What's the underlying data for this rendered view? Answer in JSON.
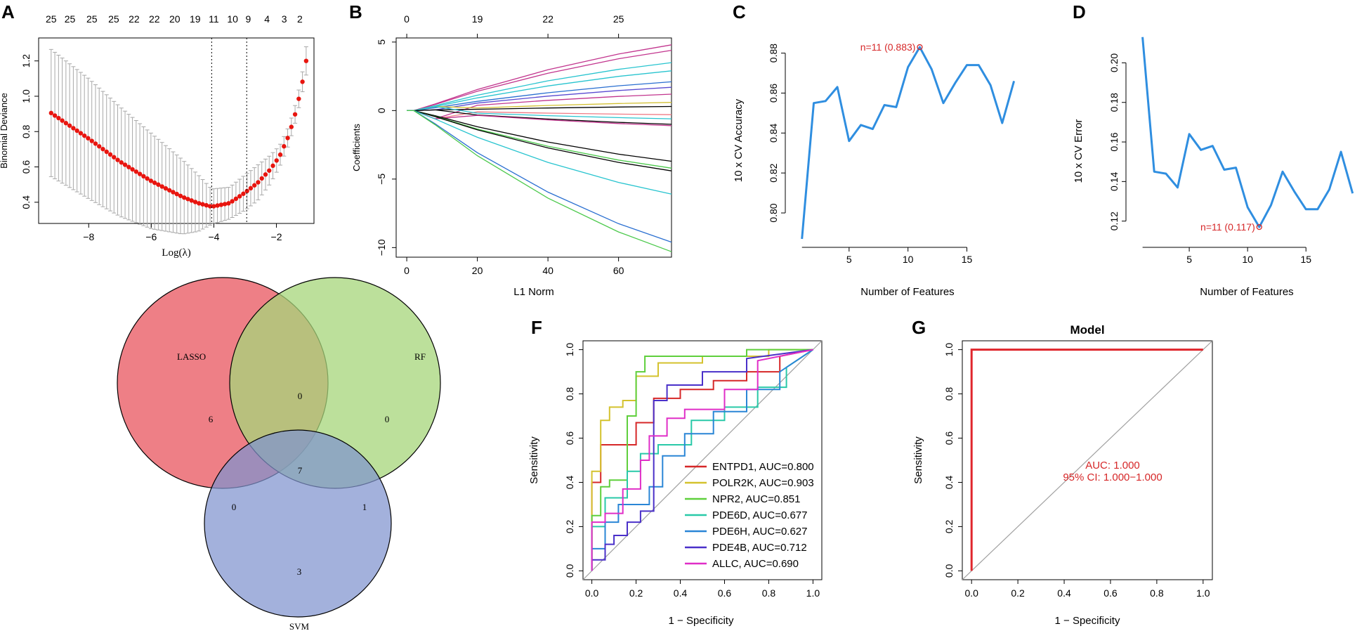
{
  "chart_data": [
    {
      "id": "A",
      "panel_label": "A",
      "type": "line",
      "title": "",
      "xlabel": "Log(λ)",
      "ylabel": "Binomial Deviance",
      "xlim": [
        -9.6,
        -0.8
      ],
      "ylim": [
        0.28,
        1.33
      ],
      "xticks": [
        -8,
        -6,
        -4,
        -2
      ],
      "yticks": [
        0.4,
        0.6,
        0.8,
        1.0,
        1.2
      ],
      "top_axis_labels": [
        "25",
        "25",
        "25",
        "25",
        "22",
        "22",
        "20",
        "19",
        "11",
        "10",
        "9",
        "4",
        "3",
        "2"
      ],
      "top_axis_positions": [
        -9.2,
        -8.6,
        -7.9,
        -7.2,
        -6.55,
        -5.9,
        -5.25,
        -4.6,
        -4.0,
        -3.4,
        -2.9,
        -2.3,
        -1.75,
        -1.25
      ],
      "vlines": [
        -4.07,
        -2.95
      ],
      "x": [
        -9.2,
        -8.0,
        -7.0,
        -6.0,
        -5.0,
        -4.5,
        -4.07,
        -3.5,
        -3.0,
        -2.6,
        -2.2,
        -1.9,
        -1.6,
        -1.4,
        -1.2,
        -1.05
      ],
      "y": [
        0.905,
        0.76,
        0.63,
        0.52,
        0.43,
        0.395,
        0.375,
        0.395,
        0.455,
        0.51,
        0.585,
        0.66,
        0.78,
        0.9,
        1.05,
        1.2
      ],
      "errors": [
        0.36,
        0.34,
        0.31,
        0.27,
        0.21,
        0.16,
        0.1,
        0.09,
        0.1,
        0.1,
        0.08,
        0.06,
        0.05,
        0.05,
        0.05,
        0.08
      ]
    },
    {
      "id": "B",
      "panel_label": "B",
      "type": "line",
      "title": "",
      "xlabel": "L1 Norm",
      "ylabel": "Coefficients",
      "xlim": [
        -3,
        75
      ],
      "ylim": [
        -10.7,
        5.3
      ],
      "xticks": [
        0,
        20,
        40,
        60
      ],
      "yticks": [
        -10,
        -5,
        0,
        5
      ],
      "top_axis_labels": [
        "0",
        "19",
        "22",
        "25"
      ],
      "top_axis_positions": [
        0,
        20,
        40,
        60
      ],
      "series": [
        {
          "color": "#c2358e",
          "end": 4.8
        },
        {
          "color": "#c2358e",
          "end": 4.4
        },
        {
          "color": "#28c4cf",
          "end": 3.5
        },
        {
          "color": "#28c4cf",
          "end": 2.9
        },
        {
          "color": "#2a6fd1",
          "end": 2.1
        },
        {
          "color": "#5a4bd1",
          "end": 1.7
        },
        {
          "color": "#c2358e",
          "end": 1.2
        },
        {
          "color": "#d2c032",
          "end": 0.6
        },
        {
          "color": "#000000",
          "end": 0.3
        },
        {
          "color": "#f07a85",
          "end": -0.3
        },
        {
          "color": "#28c4cf",
          "end": -0.6
        },
        {
          "color": "#000000",
          "end": -1.0
        },
        {
          "color": "#c2358e",
          "end": -1.1
        },
        {
          "color": "#000000",
          "end": -3.7
        },
        {
          "color": "#4cc94c",
          "end": -4.2
        },
        {
          "color": "#000000",
          "end": -4.4
        },
        {
          "color": "#28c4cf",
          "end": -6.1
        },
        {
          "color": "#2a6fd1",
          "end": -9.6
        },
        {
          "color": "#4cc94c",
          "end": -10.3
        }
      ]
    },
    {
      "id": "C",
      "panel_label": "C",
      "type": "line",
      "title": "",
      "xlabel": "Number of Features",
      "ylabel": "10 x CV Accuracy",
      "xlim": [
        0.3,
        19.5
      ],
      "ylim": [
        0.787,
        0.889
      ],
      "xticks": [
        5,
        10,
        15
      ],
      "yticks": [
        0.8,
        0.82,
        0.84,
        0.86,
        0.88
      ],
      "x": [
        1,
        2,
        3,
        4,
        5,
        6,
        7,
        8,
        9,
        10,
        11,
        12,
        13,
        14,
        15,
        16,
        17,
        18,
        19
      ],
      "y": [
        0.787,
        0.855,
        0.856,
        0.863,
        0.836,
        0.844,
        0.842,
        0.854,
        0.853,
        0.873,
        0.883,
        0.872,
        0.855,
        0.865,
        0.874,
        0.874,
        0.864,
        0.845,
        0.866
      ],
      "annotation": "n=11 (0.883)",
      "annotation_x": 11,
      "color": "#2f8ee0"
    },
    {
      "id": "D",
      "panel_label": "D",
      "type": "line",
      "title": "",
      "xlabel": "Number of Features",
      "ylabel": "10 x CV Error",
      "xlim": [
        0.3,
        19.5
      ],
      "ylim": [
        0.111,
        0.214
      ],
      "xticks": [
        5,
        10,
        15
      ],
      "yticks": [
        0.12,
        0.14,
        0.16,
        0.18,
        0.2
      ],
      "x": [
        1,
        2,
        3,
        4,
        5,
        6,
        7,
        8,
        9,
        10,
        11,
        12,
        13,
        14,
        15,
        16,
        17,
        18,
        19
      ],
      "y": [
        0.213,
        0.145,
        0.144,
        0.137,
        0.164,
        0.156,
        0.158,
        0.146,
        0.147,
        0.127,
        0.117,
        0.128,
        0.145,
        0.135,
        0.126,
        0.126,
        0.136,
        0.155,
        0.134
      ],
      "annotation": "n=11 (0.117)",
      "annotation_x": 11,
      "color": "#2f8ee0"
    },
    {
      "id": "E",
      "panel_label": "E",
      "type": "venn",
      "sets": [
        {
          "name": "LASSO",
          "color": "#ee7f86"
        },
        {
          "name": "RF",
          "color": "#a6d57a"
        },
        {
          "name": "SVM",
          "color": "#7f93cf"
        }
      ],
      "regions": {
        "lasso_only": "6",
        "rf_only": "0",
        "svm_only": "3",
        "lasso_rf": "0",
        "lasso_svm": "0",
        "rf_svm": "1",
        "all": "7"
      }
    },
    {
      "id": "F",
      "panel_label": "F",
      "type": "line",
      "title": "",
      "xlabel": "1 − Specificity",
      "ylabel": "Sensitivity",
      "xlim": [
        -0.04,
        1.04
      ],
      "ylim": [
        -0.04,
        1.04
      ],
      "xticks": [
        0.0,
        0.2,
        0.4,
        0.6,
        0.8,
        1.0
      ],
      "yticks": [
        0.0,
        0.2,
        0.4,
        0.6,
        0.8,
        1.0
      ],
      "legend": "bottom-right",
      "series": [
        {
          "name": "ENTPD1, AUC=0.800",
          "color": "#d62728",
          "x": [
            0,
            0,
            0.02,
            0.04,
            0.04,
            0.2,
            0.2,
            0.28,
            0.28,
            0.4,
            0.4,
            0.55,
            0.55,
            0.7,
            0.7,
            0.85,
            0.85,
            1.0
          ],
          "y": [
            0,
            0.4,
            0.4,
            0.4,
            0.57,
            0.57,
            0.67,
            0.67,
            0.78,
            0.78,
            0.82,
            0.82,
            0.86,
            0.86,
            0.9,
            0.9,
            0.97,
            1.0
          ]
        },
        {
          "name": "POLR2K, AUC=0.903",
          "color": "#d4c22e",
          "x": [
            0,
            0,
            0.04,
            0.04,
            0.08,
            0.08,
            0.14,
            0.14,
            0.2,
            0.2,
            0.3,
            0.3,
            0.5,
            0.5,
            0.8,
            0.8,
            1.0
          ],
          "y": [
            0,
            0.45,
            0.45,
            0.68,
            0.68,
            0.74,
            0.74,
            0.77,
            0.77,
            0.88,
            0.88,
            0.94,
            0.94,
            0.97,
            0.97,
            1.0,
            1.0
          ]
        },
        {
          "name": "NPR2, AUC=0.851",
          "color": "#5fcf3c",
          "x": [
            0,
            0,
            0.04,
            0.04,
            0.08,
            0.08,
            0.16,
            0.16,
            0.2,
            0.2,
            0.24,
            0.24,
            0.4,
            0.4,
            0.7,
            0.7,
            1.0
          ],
          "y": [
            0,
            0.25,
            0.25,
            0.38,
            0.38,
            0.41,
            0.41,
            0.7,
            0.7,
            0.9,
            0.9,
            0.97,
            0.97,
            0.97,
            0.97,
            1.0,
            1.0
          ]
        },
        {
          "name": "PDE6D, AUC=0.677",
          "color": "#29c9a8",
          "x": [
            0,
            0,
            0.06,
            0.06,
            0.16,
            0.16,
            0.22,
            0.22,
            0.3,
            0.3,
            0.45,
            0.45,
            0.6,
            0.6,
            0.75,
            0.75,
            0.88,
            0.88,
            1.0
          ],
          "y": [
            0,
            0.2,
            0.2,
            0.33,
            0.33,
            0.45,
            0.45,
            0.53,
            0.53,
            0.57,
            0.57,
            0.68,
            0.68,
            0.74,
            0.74,
            0.83,
            0.83,
            0.92,
            1.0
          ]
        },
        {
          "name": "PDE6H, AUC=0.627",
          "color": "#2a86d6",
          "x": [
            0,
            0,
            0.06,
            0.06,
            0.12,
            0.12,
            0.26,
            0.26,
            0.32,
            0.32,
            0.42,
            0.42,
            0.55,
            0.55,
            0.7,
            0.7,
            0.85,
            0.85,
            1.0
          ],
          "y": [
            0,
            0.1,
            0.1,
            0.22,
            0.22,
            0.3,
            0.3,
            0.38,
            0.38,
            0.52,
            0.52,
            0.62,
            0.62,
            0.72,
            0.72,
            0.82,
            0.82,
            0.9,
            1.0
          ]
        },
        {
          "name": "PDE4B, AUC=0.712",
          "color": "#4a30c9",
          "x": [
            0,
            0,
            0.06,
            0.06,
            0.1,
            0.1,
            0.16,
            0.16,
            0.22,
            0.22,
            0.28,
            0.28,
            0.34,
            0.34,
            0.5,
            0.5,
            0.7,
            0.7,
            1.0
          ],
          "y": [
            0,
            0.05,
            0.05,
            0.12,
            0.12,
            0.16,
            0.16,
            0.22,
            0.22,
            0.27,
            0.27,
            0.77,
            0.77,
            0.84,
            0.84,
            0.9,
            0.9,
            0.96,
            1.0
          ]
        },
        {
          "name": "ALLC, AUC=0.690",
          "color": "#e02ec7",
          "x": [
            0,
            0,
            0.06,
            0.06,
            0.14,
            0.14,
            0.22,
            0.22,
            0.26,
            0.26,
            0.34,
            0.34,
            0.42,
            0.42,
            0.6,
            0.6,
            0.75,
            0.75,
            1.0
          ],
          "y": [
            0,
            0.22,
            0.22,
            0.26,
            0.26,
            0.37,
            0.37,
            0.5,
            0.5,
            0.61,
            0.61,
            0.69,
            0.69,
            0.73,
            0.73,
            0.82,
            0.82,
            0.95,
            1.0
          ]
        }
      ]
    },
    {
      "id": "G",
      "panel_label": "G",
      "type": "line",
      "title": "Model",
      "xlabel": "1 − Specificity",
      "ylabel": "Sensitivity",
      "xlim": [
        -0.04,
        1.04
      ],
      "ylim": [
        -0.04,
        1.04
      ],
      "xticks": [
        0.0,
        0.2,
        0.4,
        0.6,
        0.8,
        1.0
      ],
      "yticks": [
        0.0,
        0.2,
        0.4,
        0.6,
        0.8,
        1.0
      ],
      "annotation_auc": "AUC: 1.000",
      "annotation_ci": "95% CI: 1.000−1.000",
      "color": "#e0262c",
      "x": [
        0,
        0,
        1
      ],
      "y": [
        0,
        1,
        1
      ]
    }
  ]
}
